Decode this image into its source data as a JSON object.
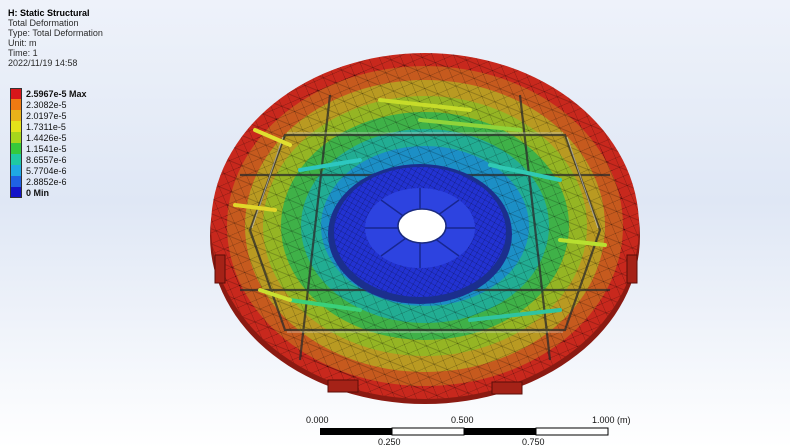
{
  "info": {
    "title": "H: Static Structural",
    "lines": [
      "Total Deformation",
      "Type: Total Deformation",
      "Unit: m",
      "Time: 1",
      "2022/11/19 14:58"
    ]
  },
  "legend": {
    "entries": [
      {
        "label": "2.5967e-5",
        "suffix": " Max",
        "color": "#d8161a"
      },
      {
        "label": "2.3082e-5",
        "suffix": "",
        "color": "#ef7a12"
      },
      {
        "label": "2.0197e-5",
        "suffix": "",
        "color": "#e8b21a"
      },
      {
        "label": "1.7311e-5",
        "suffix": "",
        "color": "#e4e21a"
      },
      {
        "label": "1.4426e-5",
        "suffix": "",
        "color": "#a6d61c"
      },
      {
        "label": "1.1541e-5",
        "suffix": "",
        "color": "#35c93b"
      },
      {
        "label": "8.6557e-6",
        "suffix": "",
        "color": "#1fc9a2"
      },
      {
        "label": "5.7704e-6",
        "suffix": "",
        "color": "#1fa9e4"
      },
      {
        "label": "2.8852e-6",
        "suffix": "",
        "color": "#1f62e3"
      },
      {
        "label": "0",
        "suffix": " Min",
        "color": "#1414c8"
      }
    ]
  },
  "scale": {
    "top_labels": [
      "0.000",
      "0.500",
      "1.000 (m)"
    ],
    "bottom_labels": [
      "0.250",
      "0.750"
    ]
  }
}
